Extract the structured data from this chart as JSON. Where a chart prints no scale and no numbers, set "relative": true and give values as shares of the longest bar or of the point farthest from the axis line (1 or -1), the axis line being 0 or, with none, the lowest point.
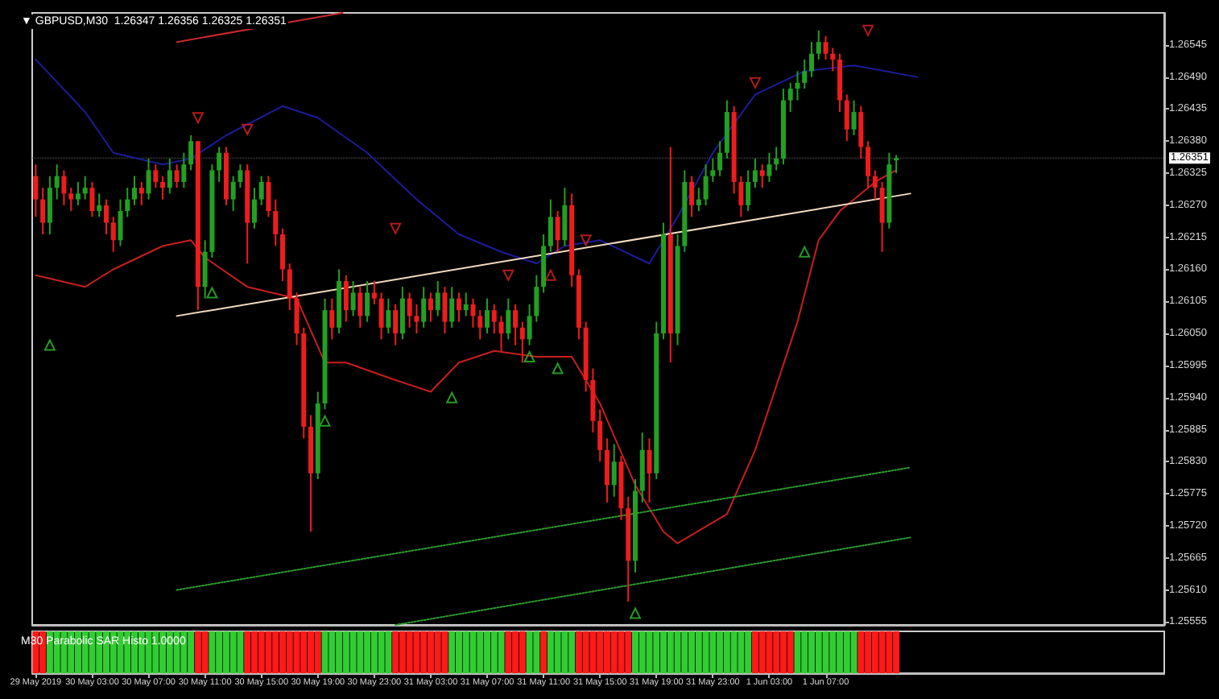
{
  "chart_data": [
    {
      "type": "candlestick",
      "title": "▼ GBPUSD,M30  1.26347 1.26356 1.26325 1.26351",
      "tick_labels": "y",
      "colors": [
        "#ee1c1c",
        "#ee1c1c",
        "#22a022",
        "#22a022",
        "#ee1c1c",
        "#ee1c1c",
        "#22a022",
        "#22a022",
        "#ee1c1c",
        "#22a022",
        "#ee1c1c",
        "#ee1c1c",
        "#22a022",
        "#22a022",
        "#22a022",
        "#ee1c1c",
        "#22a022",
        "#ee1c1c",
        "#ee1c1c",
        "#22a022",
        "#ee1c1c",
        "#22a022",
        "#22a022",
        "#ee1c1c",
        "#22a022",
        "#22a022",
        "#22a022",
        "#ee1c1c",
        "#22a022",
        "#22a022",
        "#ee1c1c",
        "#22a022",
        "#22a022",
        "#ee1c1c",
        "#ee1c1c",
        "#ee1c1c",
        "#ee1c1c",
        "#ee1c1c",
        "#ee1c1c",
        "#ee1c1c",
        "#22a022",
        "#22a022",
        "#ee1c1c",
        "#22a022",
        "#ee1c1c",
        "#22a022",
        "#ee1c1c",
        "#22a022",
        "#ee1c1c",
        "#ee1c1c",
        "#22a022",
        "#ee1c1c",
        "#22a022",
        "#ee1c1c",
        "#ee1c1c",
        "#22a022",
        "#ee1c1c",
        "#22a022",
        "#ee1c1c",
        "#22a022",
        "#ee1c1c",
        "#22a022",
        "#ee1c1c",
        "#ee1c1c",
        "#22a022",
        "#ee1c1c",
        "#ee1c1c",
        "#22a022",
        "#ee1c1c",
        "#ee1c1c",
        "#22a022",
        "#22a022",
        "#22a022",
        "#22a022",
        "#ee1c1c",
        "#22a022",
        "#ee1c1c",
        "#ee1c1c",
        "#ee1c1c",
        "#ee1c1c",
        "#ee1c1c",
        "#ee1c1c",
        "#22a022",
        "#ee1c1c",
        "#ee1c1c",
        "#22a022",
        "#22a022",
        "#ee1c1c",
        "#22a022",
        "#22a022",
        "#ee1c1c",
        "#22a022",
        "#22a022",
        "#ee1c1c",
        "#22a022",
        "#22a022",
        "#22a022",
        "#22a022",
        "#22a022",
        "#ee1c1c",
        "#ee1c1c",
        "#22a022",
        "#22a022",
        "#ee1c1c",
        "#22a022",
        "#22a022",
        "#22a022",
        "#22a022",
        "#22a022",
        "#22a022",
        "#22a022",
        "#22a022",
        "#ee1c1c",
        "#ee1c1c",
        "#ee1c1c",
        "#ee1c1c",
        "#22a022",
        "#ee1c1c",
        "#ee1c1c",
        "#ee1c1c",
        "#ee1c1c",
        "#22a022",
        "#22a022"
      ],
      "xlim": [
        "2019-05-29T22:45",
        "2019-06-02T07:00"
      ],
      "ylim": [
        1.2555,
        1.266
      ],
      "yticks": [
        1.25555,
        {
          "value": 1.2561,
          "label": "1.25610"
        },
        1.25665,
        {
          "value": 1.2572,
          "label": "1.25720"
        },
        1.25775,
        {
          "value": 1.2583,
          "label": "1.25830"
        },
        1.25885,
        {
          "value": 1.2594,
          "label": "1.25940"
        },
        1.25995,
        {
          "value": 1.2605,
          "label": "1.26050"
        },
        1.26105,
        {
          "value": 1.2616,
          "label": "1.26160"
        },
        1.26215,
        {
          "value": 1.2627,
          "label": "1.26270"
        },
        1.26325,
        {
          "value": 1.2638,
          "label": "1.26380"
        },
        1.26435,
        {
          "value": 1.2649,
          "label": "1.26490"
        },
        1.26545
      ],
      "ref_lines": [
        {
          "axis": "y",
          "value": 1.26351,
          "label": "1.26351"
        }
      ],
      "x": [
        "2019-05-29T23:00",
        "2019-05-29T23:30",
        "2019-05-30T00:00",
        "2019-05-30T00:30",
        "2019-05-30T01:00",
        "2019-05-30T01:30",
        "2019-05-30T02:00",
        "2019-05-30T02:30",
        "2019-05-30T03:00",
        "2019-05-30T03:30",
        "2019-05-30T04:00",
        "2019-05-30T04:30",
        "2019-05-30T05:00",
        "2019-05-30T05:30",
        "2019-05-30T06:00",
        "2019-05-30T06:30",
        "2019-05-30T07:00",
        "2019-05-30T07:30",
        "2019-05-30T08:00",
        "2019-05-30T08:30",
        "2019-05-30T09:00",
        "2019-05-30T09:30",
        "2019-05-30T10:00",
        "2019-05-30T10:30",
        "2019-05-30T11:00",
        "2019-05-30T11:30",
        "2019-05-30T12:00",
        "2019-05-30T12:30",
        "2019-05-30T13:00",
        "2019-05-30T13:30",
        "2019-05-30T14:00",
        "2019-05-30T14:30",
        "2019-05-30T15:00",
        "2019-05-30T15:30",
        "2019-05-30T16:00",
        "2019-05-30T16:30",
        "2019-05-30T17:00",
        "2019-05-30T17:30",
        "2019-05-30T18:00",
        "2019-05-30T18:30",
        "2019-05-30T19:00",
        "2019-05-30T19:30",
        "2019-05-30T20:00",
        "2019-05-30T20:30",
        "2019-05-30T21:00",
        "2019-05-30T21:30",
        "2019-05-30T22:00",
        "2019-05-30T22:30",
        "2019-05-30T23:00",
        "2019-05-30T23:30",
        "2019-05-31T00:00",
        "2019-05-31T00:30",
        "2019-05-31T01:00",
        "2019-05-31T01:30",
        "2019-05-31T02:00",
        "2019-05-31T02:30",
        "2019-05-31T03:00",
        "2019-05-31T03:30",
        "2019-05-31T04:00",
        "2019-05-31T04:30",
        "2019-05-31T05:00",
        "2019-05-31T05:30",
        "2019-05-31T06:00",
        "2019-05-31T06:30",
        "2019-05-31T07:00",
        "2019-05-31T07:30",
        "2019-05-31T08:00",
        "2019-05-31T08:30",
        "2019-05-31T09:00",
        "2019-05-31T09:30",
        "2019-05-31T10:00",
        "2019-05-31T10:30",
        "2019-05-31T11:00",
        "2019-05-31T11:30",
        "2019-05-31T12:00",
        "2019-05-31T12:30",
        "2019-05-31T13:00",
        "2019-05-31T13:30",
        "2019-05-31T14:00",
        "2019-05-31T14:30",
        "2019-05-31T15:00",
        "2019-05-31T15:30",
        "2019-05-31T16:00",
        "2019-05-31T16:30",
        "2019-05-31T17:00",
        "2019-05-31T17:30",
        "2019-05-31T18:00",
        "2019-05-31T18:30",
        "2019-05-31T19:00",
        "2019-05-31T19:30",
        "2019-05-31T20:00",
        "2019-05-31T20:30",
        "2019-05-31T21:00",
        "2019-05-31T21:30",
        "2019-05-31T22:00",
        "2019-05-31T22:30",
        "2019-05-31T23:00",
        "2019-05-31T23:30",
        "2019-06-01T00:00",
        "2019-06-01T00:30",
        "2019-06-01T01:00",
        "2019-06-01T01:30",
        "2019-06-01T02:00",
        "2019-06-01T02:30",
        "2019-06-01T03:00",
        "2019-06-01T03:30",
        "2019-06-01T04:00",
        "2019-06-01T04:30",
        "2019-06-01T05:00",
        "2019-06-01T05:30",
        "2019-06-01T06:00",
        "2019-06-01T06:30",
        "2019-06-01T07:00",
        "2019-06-01T07:30",
        "2019-06-01T08:00",
        "2019-06-01T08:30",
        "2019-06-01T09:00",
        "2019-06-01T09:30",
        "2019-06-01T10:00",
        "2019-06-01T10:30",
        "2019-06-01T11:00",
        "2019-06-01T11:30",
        "2019-06-01T12:00"
      ],
      "ohlc": [
        [
          1.2632,
          1.2634,
          1.2625,
          1.2628
        ],
        [
          1.2628,
          1.263,
          1.2622,
          1.2624
        ],
        [
          1.2624,
          1.2632,
          1.2622,
          1.263
        ],
        [
          1.263,
          1.2634,
          1.2628,
          1.2632
        ],
        [
          1.2632,
          1.2633,
          1.2627,
          1.2629
        ],
        [
          1.2629,
          1.263,
          1.2626,
          1.2628
        ],
        [
          1.2628,
          1.2631,
          1.2627,
          1.2629
        ],
        [
          1.2629,
          1.2632,
          1.2628,
          1.263
        ],
        [
          1.263,
          1.2631,
          1.2625,
          1.2626
        ],
        [
          1.2626,
          1.2629,
          1.2625,
          1.2627
        ],
        [
          1.2627,
          1.2628,
          1.2622,
          1.2624
        ],
        [
          1.2624,
          1.2625,
          1.2619,
          1.2621
        ],
        [
          1.2621,
          1.2628,
          1.262,
          1.2626
        ],
        [
          1.2626,
          1.263,
          1.2625,
          1.2628
        ],
        [
          1.2628,
          1.2632,
          1.2627,
          1.263
        ],
        [
          1.263,
          1.2631,
          1.2627,
          1.2629
        ],
        [
          1.2629,
          1.2635,
          1.2628,
          1.2633
        ],
        [
          1.2633,
          1.2634,
          1.263,
          1.2631
        ],
        [
          1.2631,
          1.2632,
          1.2628,
          1.263
        ],
        [
          1.263,
          1.2635,
          1.2629,
          1.2633
        ],
        [
          1.2633,
          1.2634,
          1.263,
          1.2631
        ],
        [
          1.2631,
          1.2636,
          1.263,
          1.2634
        ],
        [
          1.2634,
          1.2639,
          1.2633,
          1.2638
        ],
        [
          1.2638,
          1.2638,
          1.2609,
          1.2613
        ],
        [
          1.2613,
          1.2621,
          1.2611,
          1.2619
        ],
        [
          1.2619,
          1.2634,
          1.2618,
          1.2633
        ],
        [
          1.2633,
          1.2637,
          1.2631,
          1.2636
        ],
        [
          1.2636,
          1.2637,
          1.2627,
          1.2628
        ],
        [
          1.2628,
          1.2632,
          1.2626,
          1.2631
        ],
        [
          1.2631,
          1.2634,
          1.263,
          1.2633
        ],
        [
          1.2633,
          1.2634,
          1.2617,
          1.2624
        ],
        [
          1.2624,
          1.263,
          1.2623,
          1.2628
        ],
        [
          1.2628,
          1.2632,
          1.2627,
          1.2631
        ],
        [
          1.2631,
          1.2632,
          1.2625,
          1.2626
        ],
        [
          1.2626,
          1.2628,
          1.262,
          1.2622
        ],
        [
          1.2622,
          1.2623,
          1.2614,
          1.2616
        ],
        [
          1.2616,
          1.2617,
          1.2609,
          1.2611
        ],
        [
          1.2611,
          1.2612,
          1.2603,
          1.2605
        ],
        [
          1.2605,
          1.2606,
          1.2587,
          1.2589
        ],
        [
          1.2589,
          1.2591,
          1.2571,
          1.2581
        ],
        [
          1.2581,
          1.2595,
          1.258,
          1.2593
        ],
        [
          1.2593,
          1.2611,
          1.2592,
          1.2609
        ],
        [
          1.2609,
          1.2611,
          1.2604,
          1.2606
        ],
        [
          1.2606,
          1.2616,
          1.2605,
          1.2614
        ],
        [
          1.2614,
          1.2615,
          1.2607,
          1.2609
        ],
        [
          1.2609,
          1.2614,
          1.2608,
          1.2612
        ],
        [
          1.2612,
          1.2613,
          1.2606,
          1.2608
        ],
        [
          1.2608,
          1.2614,
          1.2607,
          1.2612
        ],
        [
          1.2612,
          1.2614,
          1.261,
          1.2611
        ],
        [
          1.2611,
          1.2612,
          1.2604,
          1.2606
        ],
        [
          1.2606,
          1.2611,
          1.2605,
          1.2609
        ],
        [
          1.2609,
          1.261,
          1.2603,
          1.2605
        ],
        [
          1.2605,
          1.2613,
          1.2604,
          1.2611
        ],
        [
          1.2611,
          1.2612,
          1.2606,
          1.2608
        ],
        [
          1.2608,
          1.261,
          1.2605,
          1.2607
        ],
        [
          1.2607,
          1.2613,
          1.2606,
          1.2611
        ],
        [
          1.2611,
          1.2612,
          1.2607,
          1.2609
        ],
        [
          1.2609,
          1.2614,
          1.2608,
          1.2612
        ],
        [
          1.2612,
          1.2613,
          1.2605,
          1.2607
        ],
        [
          1.2607,
          1.2613,
          1.2606,
          1.2611
        ],
        [
          1.2611,
          1.2612,
          1.2607,
          1.2609
        ],
        [
          1.2609,
          1.2612,
          1.2608,
          1.261
        ],
        [
          1.261,
          1.2611,
          1.2606,
          1.2608
        ],
        [
          1.2608,
          1.2609,
          1.2604,
          1.2606
        ],
        [
          1.2606,
          1.2611,
          1.2605,
          1.2609
        ],
        [
          1.2609,
          1.261,
          1.2605,
          1.2607
        ],
        [
          1.2607,
          1.2608,
          1.2602,
          1.2605
        ],
        [
          1.2605,
          1.2611,
          1.2604,
          1.2609
        ],
        [
          1.2609,
          1.261,
          1.2603,
          1.2606
        ],
        [
          1.2606,
          1.2607,
          1.26,
          1.2604
        ],
        [
          1.2604,
          1.261,
          1.2603,
          1.2608
        ],
        [
          1.2608,
          1.2615,
          1.2607,
          1.2613
        ],
        [
          1.2613,
          1.2622,
          1.2612,
          1.262
        ],
        [
          1.262,
          1.2628,
          1.2619,
          1.2625
        ],
        [
          1.2625,
          1.2626,
          1.2619,
          1.2621
        ],
        [
          1.2621,
          1.263,
          1.262,
          1.2627
        ],
        [
          1.2627,
          1.2629,
          1.2613,
          1.2615
        ],
        [
          1.2615,
          1.2616,
          1.2604,
          1.2606
        ],
        [
          1.2606,
          1.2607,
          1.2595,
          1.2597
        ],
        [
          1.2597,
          1.2599,
          1.2588,
          1.259
        ],
        [
          1.259,
          1.2592,
          1.2583,
          1.2585
        ],
        [
          1.2585,
          1.2587,
          1.2576,
          1.2579
        ],
        [
          1.2579,
          1.2586,
          1.2577,
          1.2583
        ],
        [
          1.2583,
          1.2584,
          1.2573,
          1.2575
        ],
        [
          1.2575,
          1.2577,
          1.2559,
          1.2566
        ],
        [
          1.2566,
          1.258,
          1.2564,
          1.2578
        ],
        [
          1.2578,
          1.2588,
          1.2576,
          1.2585
        ],
        [
          1.2585,
          1.2587,
          1.2576,
          1.2581
        ],
        [
          1.2581,
          1.2607,
          1.258,
          1.2605
        ],
        [
          1.2605,
          1.2624,
          1.2604,
          1.2622
        ],
        [
          1.2622,
          1.2637,
          1.26,
          1.2605
        ],
        [
          1.2605,
          1.2622,
          1.2603,
          1.262
        ],
        [
          1.262,
          1.2633,
          1.2619,
          1.2631
        ],
        [
          1.2631,
          1.2632,
          1.2625,
          1.2627
        ],
        [
          1.2627,
          1.263,
          1.2626,
          1.2628
        ],
        [
          1.2628,
          1.2634,
          1.2627,
          1.2632
        ],
        [
          1.2632,
          1.2635,
          1.2631,
          1.2633
        ],
        [
          1.2633,
          1.2638,
          1.2632,
          1.2636
        ],
        [
          1.2636,
          1.2645,
          1.2635,
          1.2643
        ],
        [
          1.2643,
          1.2644,
          1.2629,
          1.2631
        ],
        [
          1.2631,
          1.2632,
          1.2625,
          1.2627
        ],
        [
          1.2627,
          1.2633,
          1.2626,
          1.2631
        ],
        [
          1.2631,
          1.2635,
          1.263,
          1.2633
        ],
        [
          1.2633,
          1.2634,
          1.263,
          1.2632
        ],
        [
          1.2632,
          1.2636,
          1.2631,
          1.2634
        ],
        [
          1.2634,
          1.2637,
          1.2633,
          1.2635
        ],
        [
          1.2635,
          1.2647,
          1.2634,
          1.2645
        ],
        [
          1.2645,
          1.2648,
          1.2643,
          1.2647
        ],
        [
          1.2647,
          1.265,
          1.2645,
          1.2648
        ],
        [
          1.2648,
          1.2652,
          1.2647,
          1.265
        ],
        [
          1.265,
          1.2655,
          1.2649,
          1.2653
        ],
        [
          1.2653,
          1.2657,
          1.2652,
          1.2655
        ],
        [
          1.2655,
          1.2656,
          1.2652,
          1.2653
        ],
        [
          1.2653,
          1.2654,
          1.265,
          1.2652
        ],
        [
          1.2652,
          1.2653,
          1.2643,
          1.2645
        ],
        [
          1.2645,
          1.2646,
          1.2638,
          1.264
        ],
        [
          1.264,
          1.2645,
          1.2639,
          1.2643
        ],
        [
          1.2643,
          1.2644,
          1.2635,
          1.2637
        ],
        [
          1.2637,
          1.2638,
          1.263,
          1.2632
        ],
        [
          1.2632,
          1.2633,
          1.2628,
          1.263
        ],
        [
          1.263,
          1.2631,
          1.2619,
          1.2624
        ],
        [
          1.2624,
          1.2636,
          1.2623,
          1.2634
        ],
        [
          1.26347,
          1.26356,
          1.26325,
          1.26351
        ]
      ],
      "series": [
        {
          "type": "line",
          "color": "#1c1c9a",
          "line_style": "solid",
          "marker": "none",
          "x": [
            "2019-05-29T23:00",
            "2019-05-30T02:30",
            "2019-05-30T04:30",
            "2019-05-30T08:00",
            "2019-05-30T10:00",
            "2019-05-30T12:30",
            "2019-05-30T16:30",
            "2019-05-30T19:00",
            "2019-05-30T22:30",
            "2019-05-31T02:00",
            "2019-05-31T05:00",
            "2019-05-31T08:00",
            "2019-05-31T10:30",
            "2019-05-31T12:30",
            "2019-05-31T15:00",
            "2019-05-31T18:30",
            "2019-05-31T20:30",
            "2019-05-31T23:00",
            "2019-06-01T02:00",
            "2019-06-01T05:30",
            "2019-06-01T09:00",
            "2019-06-01T13:30"
          ],
          "values": [
            1.2652,
            1.2643,
            1.2636,
            1.2634,
            1.2635,
            1.2639,
            1.2644,
            1.2642,
            1.2636,
            1.2628,
            1.2622,
            1.2619,
            1.2617,
            1.262,
            1.2621,
            1.2617,
            1.2625,
            1.2636,
            1.2646,
            1.265,
            1.2651,
            1.2649
          ]
        },
        {
          "type": "line",
          "color": "#c81e1e",
          "line_style": "solid",
          "marker": "none",
          "x": [
            "2019-05-29T23:00",
            "2019-05-30T02:30",
            "2019-05-30T04:30",
            "2019-05-30T08:00",
            "2019-05-30T10:00",
            "2019-05-30T11:00",
            "2019-05-30T14:00",
            "2019-05-30T17:30",
            "2019-05-30T19:30",
            "2019-05-30T21:00",
            "2019-05-31T00:30",
            "2019-05-31T03:00",
            "2019-05-31T05:00",
            "2019-05-31T07:30",
            "2019-05-31T10:30",
            "2019-05-31T13:00",
            "2019-05-31T15:00",
            "2019-05-31T17:30",
            "2019-05-31T19:30",
            "2019-05-31T20:30",
            "2019-06-01T00:00",
            "2019-06-01T02:00",
            "2019-06-01T05:00",
            "2019-06-01T06:30",
            "2019-06-01T08:00",
            "2019-06-01T10:30",
            "2019-06-01T12:00"
          ],
          "values": [
            1.2615,
            1.2613,
            1.2616,
            1.262,
            1.2621,
            1.2618,
            1.2613,
            1.2611,
            1.26,
            1.26,
            1.2597,
            1.2595,
            1.26,
            1.2602,
            1.2601,
            1.2601,
            1.2593,
            1.2579,
            1.2571,
            1.2569,
            1.2574,
            1.2585,
            1.2607,
            1.2621,
            1.2626,
            1.2631,
            1.2633
          ]
        },
        {
          "type": "line",
          "color": "#f5dcc0",
          "line_style": "solid",
          "marker": "none",
          "x": [
            "2019-05-30T09:00",
            "2019-06-01T13:00"
          ],
          "values": [
            1.2608,
            1.2629
          ]
        },
        {
          "type": "line",
          "color": "#2e9a2e",
          "line_style": "dotted",
          "marker": "none",
          "x": [
            "2019-05-30T09:00",
            "2019-06-01T13:00"
          ],
          "values": [
            1.2561,
            1.2582
          ]
        },
        {
          "type": "line",
          "color": "#2e9a2e",
          "line_style": "dotted",
          "marker": "none",
          "x": [
            "2019-05-31T00:30",
            "2019-06-01T13:00"
          ],
          "values": [
            1.2555,
            1.257
          ]
        },
        {
          "type": "line",
          "color": "#c8282a",
          "line_style": "solid",
          "marker": "none",
          "x": [
            "2019-05-30T09:00",
            "2019-05-30T20:45"
          ],
          "values": [
            1.2655,
            1.266
          ]
        },
        {
          "type": "scatter",
          "color": "#e02020",
          "marker": "triangle",
          "x": [
            "2019-05-30T10:30",
            "2019-05-30T14:00",
            "2019-05-31T00:30",
            "2019-05-31T08:30",
            "2019-05-31T11:30",
            "2019-05-31T14:00",
            "2019-06-01T02:00",
            "2019-06-01T10:00"
          ],
          "values": [
            1.2642,
            1.264,
            1.2623,
            1.2615,
            1.2615,
            1.2621,
            1.2648,
            1.2657
          ]
        },
        {
          "type": "scatter",
          "color": "#30c030",
          "marker": "triangle",
          "x": [
            "2019-05-30T00:00",
            "2019-05-30T11:30",
            "2019-05-30T19:30",
            "2019-05-31T04:30",
            "2019-05-31T10:00",
            "2019-05-31T12:00",
            "2019-05-31T17:30",
            "2019-06-01T05:30"
          ],
          "values": [
            1.2603,
            1.2612,
            1.259,
            1.2594,
            1.2601,
            1.2599,
            1.2557,
            1.2619
          ]
        }
      ]
    },
    {
      "type": "bar",
      "title": "M30 Parabolic SAR Histo 1.0000",
      "relative": true,
      "tick_labels": "x",
      "xlim": [
        "2019-05-29T22:45",
        "2019-06-02T07:00"
      ],
      "xticks": [
        {
          "value": "2019-05-29T23:00",
          "label": "29 May 2019"
        },
        {
          "value": "2019-05-30T03:00",
          "label": "30 May 03:00"
        },
        {
          "value": "2019-05-30T07:00",
          "label": "30 May 07:00"
        },
        {
          "value": "2019-05-30T11:00",
          "label": "30 May 11:00"
        },
        {
          "value": "2019-05-30T15:00",
          "label": "30 May 15:00"
        },
        {
          "value": "2019-05-30T19:00",
          "label": "30 May 19:00"
        },
        {
          "value": "2019-05-30T23:00",
          "label": "30 May 23:00"
        },
        {
          "value": "2019-05-31T03:00",
          "label": "31 May 03:00"
        },
        {
          "value": "2019-05-31T07:00",
          "label": "31 May 07:00"
        },
        {
          "value": "2019-05-31T11:00",
          "label": "31 May 11:00"
        },
        {
          "value": "2019-05-31T15:00",
          "label": "31 May 15:00"
        },
        {
          "value": "2019-05-31T19:00",
          "label": "31 May 19:00"
        },
        {
          "value": "2019-05-31T23:00",
          "label": "31 May 23:00"
        },
        {
          "value": "2019-06-01T03:00",
          "label": "1 Jun 03:00"
        },
        {
          "value": "2019-06-01T07:00",
          "label": "1 Jun 07:00"
        }
      ],
      "x": [
        "2019-05-29T23:00",
        "2019-05-29T23:30",
        "2019-05-30T00:00",
        "2019-05-30T00:30",
        "2019-05-30T01:00",
        "2019-05-30T01:30",
        "2019-05-30T02:00",
        "2019-05-30T02:30",
        "2019-05-30T03:00",
        "2019-05-30T03:30",
        "2019-05-30T04:00",
        "2019-05-30T04:30",
        "2019-05-30T05:00",
        "2019-05-30T05:30",
        "2019-05-30T06:00",
        "2019-05-30T06:30",
        "2019-05-30T07:00",
        "2019-05-30T07:30",
        "2019-05-30T08:00",
        "2019-05-30T08:30",
        "2019-05-30T09:00",
        "2019-05-30T09:30",
        "2019-05-30T10:00",
        "2019-05-30T10:30",
        "2019-05-30T11:00",
        "2019-05-30T11:30",
        "2019-05-30T12:00",
        "2019-05-30T12:30",
        "2019-05-30T13:00",
        "2019-05-30T13:30",
        "2019-05-30T14:00",
        "2019-05-30T14:30",
        "2019-05-30T15:00",
        "2019-05-30T15:30",
        "2019-05-30T16:00",
        "2019-05-30T16:30",
        "2019-05-30T17:00",
        "2019-05-30T17:30",
        "2019-05-30T18:00",
        "2019-05-30T18:30",
        "2019-05-30T19:00",
        "2019-05-30T19:30",
        "2019-05-30T20:00",
        "2019-05-30T20:30",
        "2019-05-30T21:00",
        "2019-05-30T21:30",
        "2019-05-30T22:00",
        "2019-05-30T22:30",
        "2019-05-30T23:00",
        "2019-05-30T23:30",
        "2019-05-31T00:00",
        "2019-05-31T00:30",
        "2019-05-31T01:00",
        "2019-05-31T01:30",
        "2019-05-31T02:00",
        "2019-05-31T02:30",
        "2019-05-31T03:00",
        "2019-05-31T03:30",
        "2019-05-31T04:00",
        "2019-05-31T04:30",
        "2019-05-31T05:00",
        "2019-05-31T05:30",
        "2019-05-31T06:00",
        "2019-05-31T06:30",
        "2019-05-31T07:00",
        "2019-05-31T07:30",
        "2019-05-31T08:00",
        "2019-05-31T08:30",
        "2019-05-31T09:00",
        "2019-05-31T09:30",
        "2019-05-31T10:00",
        "2019-05-31T10:30",
        "2019-05-31T11:00",
        "2019-05-31T11:30",
        "2019-05-31T12:00",
        "2019-05-31T12:30",
        "2019-05-31T13:00",
        "2019-05-31T13:30",
        "2019-05-31T14:00",
        "2019-05-31T14:30",
        "2019-05-31T15:00",
        "2019-05-31T15:30",
        "2019-05-31T16:00",
        "2019-05-31T16:30",
        "2019-05-31T17:00",
        "2019-05-31T17:30",
        "2019-05-31T18:00",
        "2019-05-31T18:30",
        "2019-05-31T19:00",
        "2019-05-31T19:30",
        "2019-05-31T20:00",
        "2019-05-31T20:30",
        "2019-05-31T21:00",
        "2019-05-31T21:30",
        "2019-05-31T22:00",
        "2019-05-31T22:30",
        "2019-05-31T23:00",
        "2019-05-31T23:30",
        "2019-06-01T00:00",
        "2019-06-01T00:30",
        "2019-06-01T01:00",
        "2019-06-01T01:30",
        "2019-06-01T02:00",
        "2019-06-01T02:30",
        "2019-06-01T03:00",
        "2019-06-01T03:30",
        "2019-06-01T04:00",
        "2019-06-01T04:30",
        "2019-06-01T05:00",
        "2019-06-01T05:30",
        "2019-06-01T06:00",
        "2019-06-01T06:30",
        "2019-06-01T07:00",
        "2019-06-01T07:30",
        "2019-06-01T08:00",
        "2019-06-01T08:30",
        "2019-06-01T09:00",
        "2019-06-01T09:30",
        "2019-06-01T10:00",
        "2019-06-01T10:30",
        "2019-06-01T11:00",
        "2019-06-01T11:30",
        "2019-06-01T12:00"
      ],
      "values": [
        1,
        1,
        1,
        1,
        1,
        1,
        1,
        1,
        1,
        1,
        1,
        1,
        1,
        1,
        1,
        1,
        1,
        1,
        1,
        1,
        1,
        1,
        1,
        1,
        1,
        1,
        1,
        1,
        1,
        1,
        1,
        1,
        1,
        1,
        1,
        1,
        1,
        1,
        1,
        1,
        1,
        1,
        1,
        1,
        1,
        1,
        1,
        1,
        1,
        1,
        1,
        1,
        1,
        1,
        1,
        1,
        1,
        1,
        1,
        1,
        1,
        1,
        1,
        1,
        1,
        1,
        1,
        1,
        1,
        1,
        1,
        1,
        1,
        1,
        1,
        1,
        1,
        1,
        1,
        1,
        1,
        1,
        1,
        1,
        1,
        1,
        1,
        1,
        1,
        1,
        1,
        1,
        1,
        1,
        1,
        1,
        1,
        1,
        1,
        1,
        1,
        1,
        1,
        1,
        1,
        1,
        1,
        1,
        1,
        1,
        1,
        1,
        1,
        1,
        1,
        1,
        1,
        1,
        1,
        1,
        1,
        1,
        1
      ],
      "colors": [
        "#ff1a1a",
        "#ff1a1a",
        "#32cd32",
        "#32cd32",
        "#32cd32",
        "#32cd32",
        "#32cd32",
        "#32cd32",
        "#32cd32",
        "#32cd32",
        "#32cd32",
        "#32cd32",
        "#32cd32",
        "#32cd32",
        "#32cd32",
        "#32cd32",
        "#32cd32",
        "#32cd32",
        "#32cd32",
        "#32cd32",
        "#32cd32",
        "#32cd32",
        "#32cd32",
        "#ff1a1a",
        "#ff1a1a",
        "#32cd32",
        "#32cd32",
        "#32cd32",
        "#32cd32",
        "#32cd32",
        "#ff1a1a",
        "#ff1a1a",
        "#ff1a1a",
        "#ff1a1a",
        "#ff1a1a",
        "#ff1a1a",
        "#ff1a1a",
        "#ff1a1a",
        "#ff1a1a",
        "#ff1a1a",
        "#ff1a1a",
        "#32cd32",
        "#32cd32",
        "#32cd32",
        "#32cd32",
        "#32cd32",
        "#32cd32",
        "#32cd32",
        "#32cd32",
        "#32cd32",
        "#32cd32",
        "#ff1a1a",
        "#ff1a1a",
        "#ff1a1a",
        "#ff1a1a",
        "#ff1a1a",
        "#ff1a1a",
        "#ff1a1a",
        "#ff1a1a",
        "#32cd32",
        "#32cd32",
        "#32cd32",
        "#32cd32",
        "#32cd32",
        "#32cd32",
        "#32cd32",
        "#32cd32",
        "#ff1a1a",
        "#ff1a1a",
        "#ff1a1a",
        "#32cd32",
        "#32cd32",
        "#ff1a1a",
        "#32cd32",
        "#32cd32",
        "#32cd32",
        "#32cd32",
        "#ff1a1a",
        "#ff1a1a",
        "#ff1a1a",
        "#ff1a1a",
        "#ff1a1a",
        "#ff1a1a",
        "#ff1a1a",
        "#ff1a1a",
        "#32cd32",
        "#32cd32",
        "#32cd32",
        "#32cd32",
        "#32cd32",
        "#32cd32",
        "#32cd32",
        "#32cd32",
        "#32cd32",
        "#32cd32",
        "#32cd32",
        "#32cd32",
        "#32cd32",
        "#32cd32",
        "#32cd32",
        "#32cd32",
        "#32cd32",
        "#ff1a1a",
        "#ff1a1a",
        "#ff1a1a",
        "#ff1a1a",
        "#ff1a1a",
        "#ff1a1a",
        "#32cd32",
        "#32cd32",
        "#32cd32",
        "#32cd32",
        "#32cd32",
        "#32cd32",
        "#32cd32",
        "#32cd32",
        "#32cd32",
        "#ff1a1a",
        "#ff1a1a",
        "#ff1a1a",
        "#ff1a1a",
        "#ff1a1a",
        "#ff1a1a"
      ]
    }
  ]
}
